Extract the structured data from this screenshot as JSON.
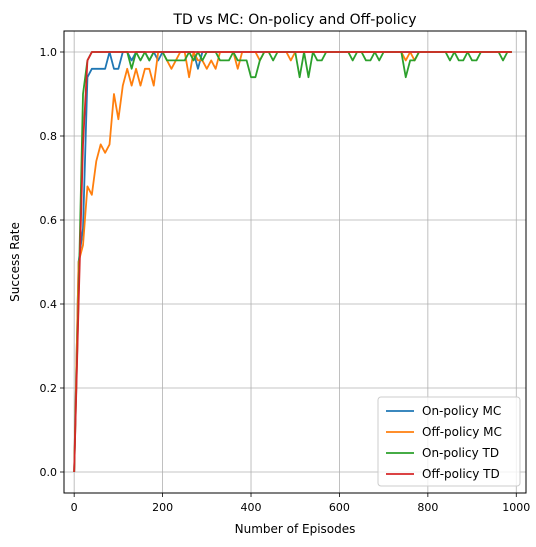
{
  "chart_data": {
    "type": "line",
    "title": "TD vs MC: On-policy and Off-policy",
    "xlabel": "Number of Episodes",
    "ylabel": "Success Rate",
    "xlim": [
      -23,
      1022
    ],
    "ylim": [
      -0.05,
      1.05
    ],
    "xticks": [
      0,
      200,
      400,
      600,
      800,
      1000
    ],
    "yticks": [
      0.0,
      0.2,
      0.4,
      0.6,
      0.8,
      1.0
    ],
    "xtick_labels": [
      "0",
      "200",
      "400",
      "600",
      "800",
      "1000"
    ],
    "ytick_labels": [
      "0.0",
      "0.2",
      "0.4",
      "0.6",
      "0.8",
      "1.0"
    ],
    "grid": true,
    "legend_position": "lower-right",
    "x": [
      0,
      10,
      20,
      30,
      40,
      50,
      60,
      70,
      80,
      90,
      100,
      110,
      120,
      130,
      140,
      150,
      160,
      170,
      180,
      190,
      200,
      210,
      220,
      230,
      240,
      250,
      260,
      270,
      280,
      290,
      300,
      310,
      320,
      330,
      340,
      350,
      360,
      370,
      380,
      390,
      400,
      410,
      420,
      430,
      440,
      450,
      460,
      470,
      480,
      490,
      500,
      510,
      520,
      530,
      540,
      550,
      560,
      570,
      580,
      590,
      600,
      610,
      620,
      630,
      640,
      650,
      660,
      670,
      680,
      690,
      700,
      710,
      720,
      730,
      740,
      750,
      760,
      770,
      780,
      790,
      800,
      810,
      820,
      830,
      840,
      850,
      860,
      870,
      880,
      890,
      900,
      910,
      920,
      930,
      940,
      950,
      960,
      970,
      980,
      990
    ],
    "series": [
      {
        "name": "On-policy MC",
        "color": "#1f77b4",
        "values": [
          0.0,
          0.5,
          0.58,
          0.94,
          0.96,
          0.96,
          0.96,
          0.96,
          1.0,
          0.96,
          0.96,
          1.0,
          1.0,
          0.98,
          1.0,
          1.0,
          1.0,
          0.98,
          1.0,
          0.98,
          1.0,
          1.0,
          1.0,
          1.0,
          1.0,
          1.0,
          1.0,
          1.0,
          0.96,
          1.0,
          1.0,
          1.0,
          1.0,
          1.0,
          1.0,
          1.0,
          1.0,
          1.0,
          1.0,
          1.0,
          1.0,
          1.0,
          1.0,
          1.0,
          1.0,
          1.0,
          1.0,
          1.0,
          1.0,
          1.0,
          1.0,
          1.0,
          1.0,
          1.0,
          1.0,
          1.0,
          1.0,
          1.0,
          1.0,
          1.0,
          1.0,
          1.0,
          1.0,
          1.0,
          1.0,
          1.0,
          1.0,
          1.0,
          1.0,
          1.0,
          1.0,
          1.0,
          1.0,
          1.0,
          1.0,
          1.0,
          1.0,
          1.0,
          1.0,
          1.0,
          1.0,
          1.0,
          1.0,
          1.0,
          1.0,
          1.0,
          1.0,
          1.0,
          1.0,
          1.0,
          1.0,
          1.0,
          1.0,
          1.0,
          1.0,
          1.0,
          1.0,
          1.0,
          1.0,
          1.0
        ]
      },
      {
        "name": "Off-policy MC",
        "color": "#ff7f0e",
        "values": [
          0.0,
          0.5,
          0.54,
          0.68,
          0.66,
          0.74,
          0.78,
          0.76,
          0.78,
          0.9,
          0.84,
          0.92,
          0.96,
          0.92,
          0.96,
          0.92,
          0.96,
          0.96,
          0.92,
          1.0,
          1.0,
          0.98,
          0.96,
          0.98,
          1.0,
          1.0,
          0.94,
          1.0,
          0.98,
          0.98,
          0.96,
          0.98,
          0.96,
          1.0,
          1.0,
          1.0,
          1.0,
          0.96,
          1.0,
          1.0,
          1.0,
          1.0,
          0.98,
          1.0,
          1.0,
          1.0,
          1.0,
          1.0,
          1.0,
          0.98,
          1.0,
          1.0,
          1.0,
          1.0,
          1.0,
          1.0,
          1.0,
          1.0,
          1.0,
          1.0,
          1.0,
          1.0,
          1.0,
          1.0,
          1.0,
          1.0,
          1.0,
          1.0,
          1.0,
          1.0,
          1.0,
          1.0,
          1.0,
          1.0,
          1.0,
          0.98,
          1.0,
          0.98,
          1.0,
          1.0,
          1.0,
          1.0,
          1.0,
          1.0,
          1.0,
          1.0,
          1.0,
          1.0,
          1.0,
          1.0,
          1.0,
          1.0,
          1.0,
          1.0,
          1.0,
          1.0,
          1.0,
          1.0,
          1.0,
          1.0
        ]
      },
      {
        "name": "On-policy TD",
        "color": "#2ca02c",
        "values": [
          0.0,
          0.42,
          0.9,
          0.98,
          1.0,
          1.0,
          1.0,
          1.0,
          1.0,
          1.0,
          1.0,
          1.0,
          1.0,
          0.96,
          1.0,
          0.98,
          1.0,
          0.98,
          1.0,
          1.0,
          1.0,
          0.98,
          0.98,
          0.98,
          0.98,
          0.98,
          1.0,
          0.98,
          1.0,
          0.98,
          1.0,
          1.0,
          1.0,
          0.98,
          0.98,
          0.98,
          1.0,
          0.98,
          0.98,
          0.98,
          0.94,
          0.94,
          0.98,
          1.0,
          1.0,
          0.98,
          1.0,
          1.0,
          1.0,
          1.0,
          1.0,
          0.94,
          1.0,
          0.94,
          1.0,
          0.98,
          0.98,
          1.0,
          1.0,
          1.0,
          1.0,
          1.0,
          1.0,
          0.98,
          1.0,
          1.0,
          0.98,
          0.98,
          1.0,
          0.98,
          1.0,
          1.0,
          1.0,
          1.0,
          1.0,
          0.94,
          0.98,
          0.98,
          1.0,
          1.0,
          1.0,
          1.0,
          1.0,
          1.0,
          1.0,
          0.98,
          1.0,
          0.98,
          0.98,
          1.0,
          0.98,
          0.98,
          1.0,
          1.0,
          1.0,
          1.0,
          1.0,
          0.98,
          1.0,
          1.0
        ]
      },
      {
        "name": "Off-policy TD",
        "color": "#d62728",
        "values": [
          0.0,
          0.4,
          0.78,
          0.98,
          1.0,
          1.0,
          1.0,
          1.0,
          1.0,
          1.0,
          1.0,
          1.0,
          1.0,
          1.0,
          1.0,
          1.0,
          1.0,
          1.0,
          1.0,
          1.0,
          1.0,
          1.0,
          1.0,
          1.0,
          1.0,
          1.0,
          1.0,
          1.0,
          1.0,
          1.0,
          1.0,
          1.0,
          1.0,
          1.0,
          1.0,
          1.0,
          1.0,
          1.0,
          1.0,
          1.0,
          1.0,
          1.0,
          1.0,
          1.0,
          1.0,
          1.0,
          1.0,
          1.0,
          1.0,
          1.0,
          1.0,
          1.0,
          1.0,
          1.0,
          1.0,
          1.0,
          1.0,
          1.0,
          1.0,
          1.0,
          1.0,
          1.0,
          1.0,
          1.0,
          1.0,
          1.0,
          1.0,
          1.0,
          1.0,
          1.0,
          1.0,
          1.0,
          1.0,
          1.0,
          1.0,
          1.0,
          1.0,
          1.0,
          1.0,
          1.0,
          1.0,
          1.0,
          1.0,
          1.0,
          1.0,
          1.0,
          1.0,
          1.0,
          1.0,
          1.0,
          1.0,
          1.0,
          1.0,
          1.0,
          1.0,
          1.0,
          1.0,
          1.0,
          1.0,
          1.0
        ]
      }
    ]
  }
}
